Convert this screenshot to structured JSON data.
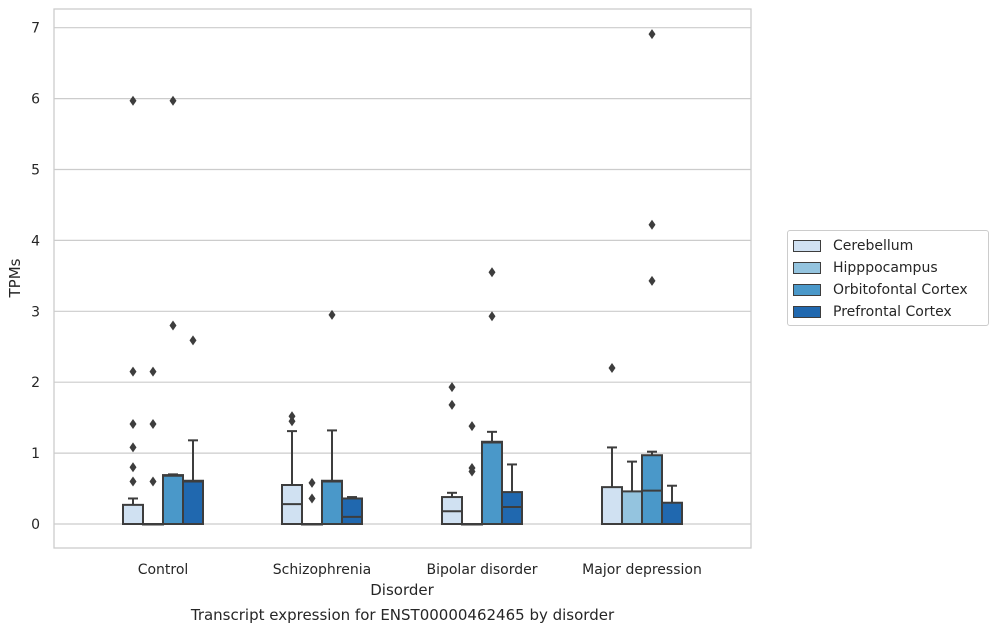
{
  "chart_data": {
    "type": "box",
    "title": "Transcript expression for ENST00000462465 by disorder",
    "xlabel": "Disorder",
    "ylabel": "TPMs",
    "ylim": [
      -0.35,
      7.3
    ],
    "yticks": [
      0,
      1,
      2,
      3,
      4,
      5,
      6,
      7
    ],
    "categories": [
      "Control",
      "Schizophrenia",
      "Bipolar disorder",
      "Major depression"
    ],
    "grid": true,
    "legend_position": "right",
    "series": [
      {
        "name": "Cerebellum",
        "color": "#d0e1f2",
        "boxes": [
          {
            "q1": 0,
            "median": 0,
            "q3": 0.27,
            "whisker_low": 0,
            "whisker_high": 0.36,
            "outliers": [
              0.6,
              0.8,
              1.08,
              1.41,
              2.15,
              5.97
            ]
          },
          {
            "q1": 0,
            "median": 0.28,
            "q3": 0.55,
            "whisker_low": 0,
            "whisker_high": 1.31,
            "outliers": [
              1.45,
              1.52
            ]
          },
          {
            "q1": 0,
            "median": 0.18,
            "q3": 0.38,
            "whisker_low": 0,
            "whisker_high": 0.44,
            "outliers": [
              1.68,
              1.93
            ]
          },
          {
            "q1": 0,
            "median": 0,
            "q3": 0.52,
            "whisker_low": 0,
            "whisker_high": 1.08,
            "outliers": [
              2.2
            ]
          }
        ]
      },
      {
        "name": "Hipppocampus",
        "color": "#94c4df",
        "boxes": [
          {
            "q1": 0,
            "median": 0,
            "q3": 0,
            "whisker_low": 0,
            "whisker_high": 0,
            "outliers": [
              0.6,
              1.41,
              2.15
            ]
          },
          {
            "q1": 0,
            "median": 0,
            "q3": 0,
            "whisker_low": 0,
            "whisker_high": 0,
            "outliers": [
              0.36,
              0.58
            ]
          },
          {
            "q1": 0,
            "median": 0,
            "q3": 0,
            "whisker_low": 0,
            "whisker_high": 0,
            "outliers": [
              0.74,
              0.79,
              1.38
            ]
          },
          {
            "q1": 0,
            "median": 0,
            "q3": 0.46,
            "whisker_low": 0,
            "whisker_high": 0.88,
            "outliers": []
          }
        ]
      },
      {
        "name": "Orbitofontal Cortex",
        "color": "#4a98c9",
        "boxes": [
          {
            "q1": 0,
            "median": 0.68,
            "q3": 0.69,
            "whisker_low": 0,
            "whisker_high": 0.7,
            "outliers": [
              2.8,
              5.97
            ]
          },
          {
            "q1": 0,
            "median": 0.6,
            "q3": 0.61,
            "whisker_low": 0,
            "whisker_high": 1.32,
            "outliers": [
              2.95
            ]
          },
          {
            "q1": 0,
            "median": 1.15,
            "q3": 1.16,
            "whisker_low": 0,
            "whisker_high": 1.3,
            "outliers": [
              2.93,
              3.55
            ]
          },
          {
            "q1": 0,
            "median": 0.47,
            "q3": 0.97,
            "whisker_low": 0,
            "whisker_high": 1.02,
            "outliers": [
              3.43,
              4.22,
              6.91
            ]
          }
        ]
      },
      {
        "name": "Prefrontal Cortex",
        "color": "#2068af",
        "boxes": [
          {
            "q1": 0,
            "median": 0.6,
            "q3": 0.61,
            "whisker_low": 0,
            "whisker_high": 1.18,
            "outliers": [
              2.59
            ]
          },
          {
            "q1": 0,
            "median": 0.1,
            "q3": 0.36,
            "whisker_low": 0,
            "whisker_high": 0.38,
            "outliers": []
          },
          {
            "q1": 0,
            "median": 0.24,
            "q3": 0.45,
            "whisker_low": 0,
            "whisker_high": 0.84,
            "outliers": []
          },
          {
            "q1": 0,
            "median": 0,
            "q3": 0.3,
            "whisker_low": 0,
            "whisker_high": 0.54,
            "outliers": []
          }
        ]
      }
    ]
  }
}
